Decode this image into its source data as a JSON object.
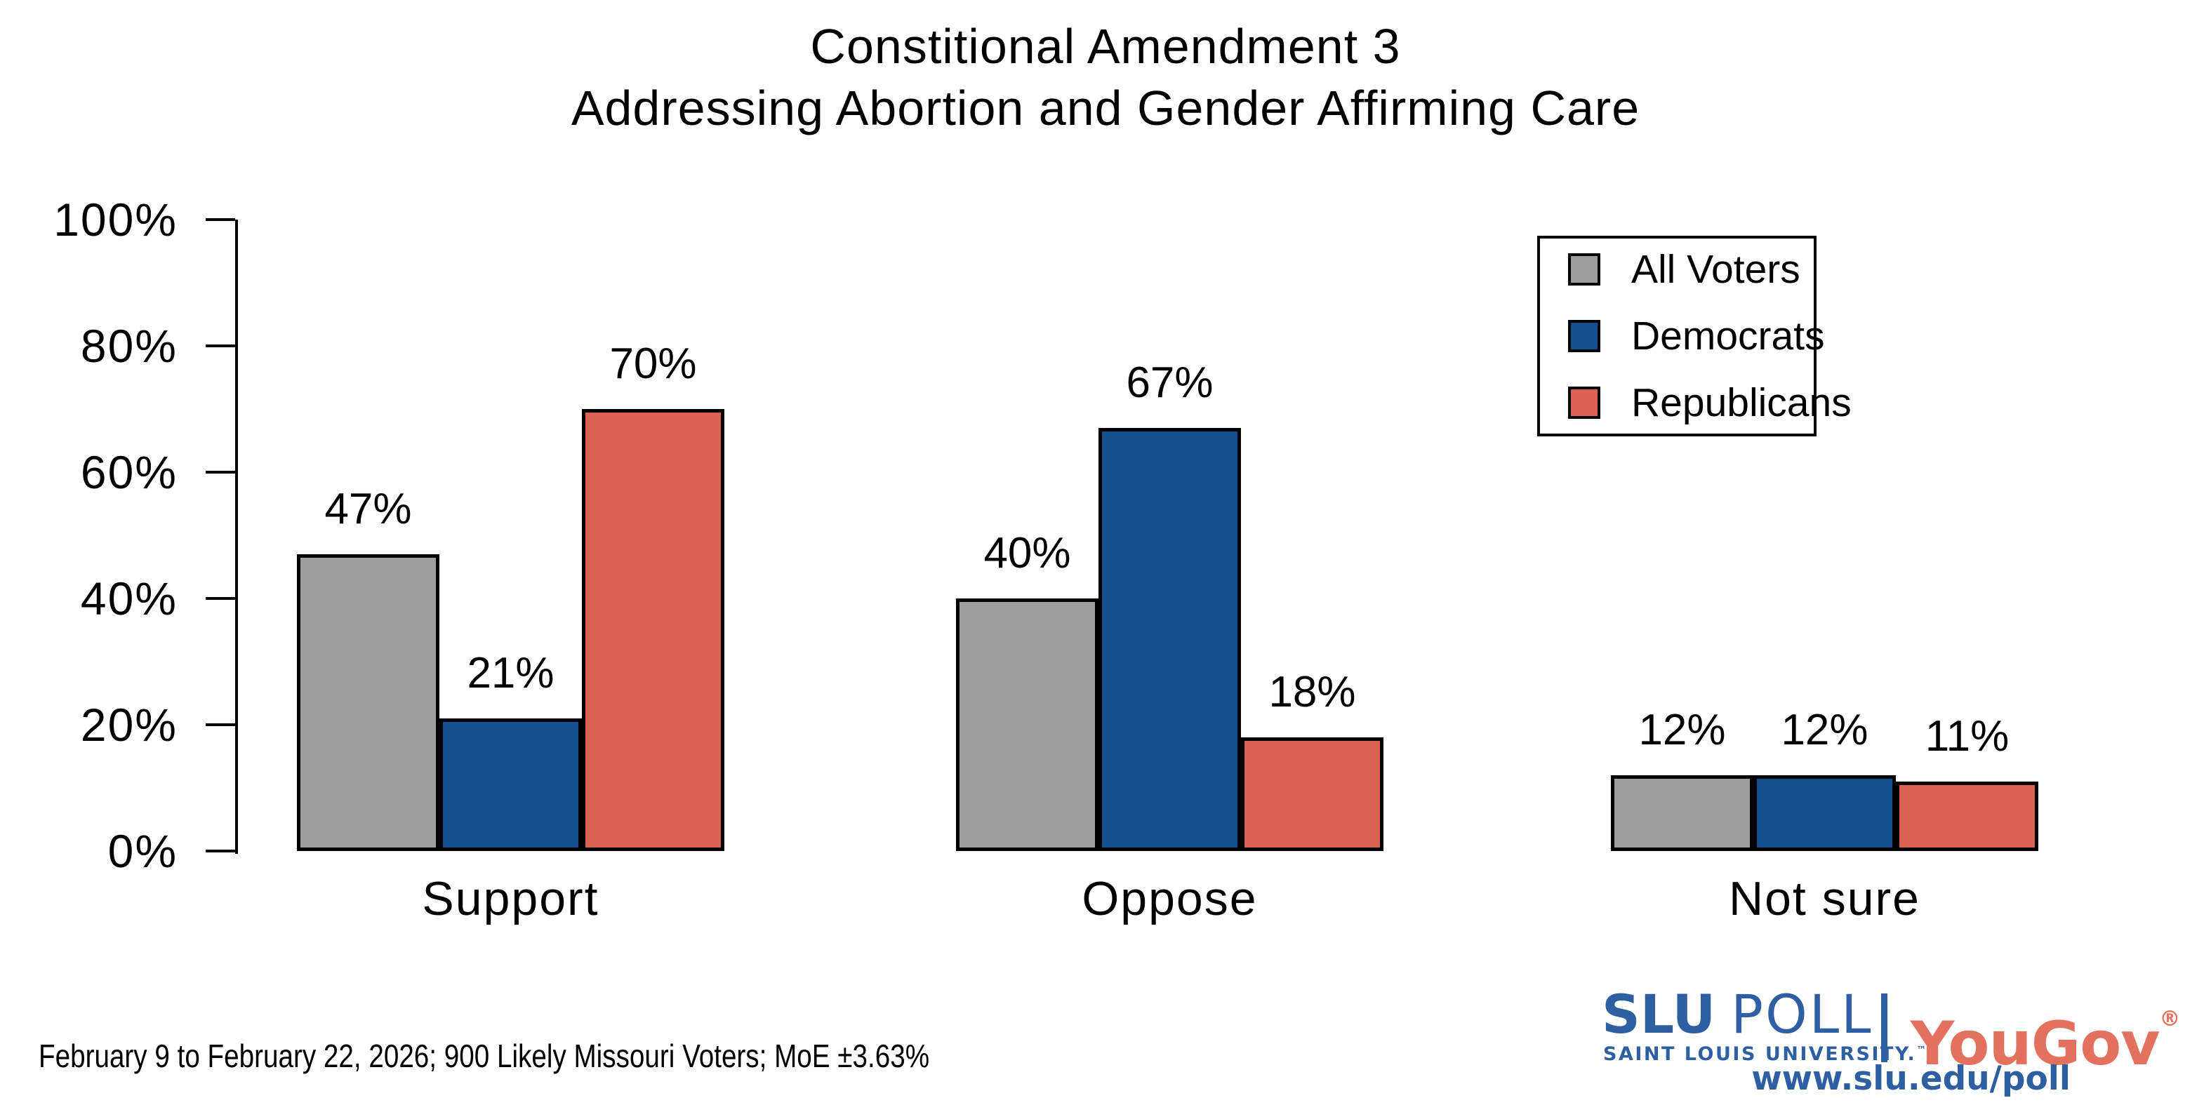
{
  "title": {
    "line1": "Constitional Amendment 3",
    "line2": "Addressing Abortion and Gender Affirming Care"
  },
  "chart_data": {
    "type": "bar",
    "categories": [
      "Support",
      "Oppose",
      "Not sure"
    ],
    "series": [
      {
        "name": "All Voters",
        "color": "#9e9e9e",
        "values": [
          47,
          40,
          12
        ]
      },
      {
        "name": "Democrats",
        "color": "#124f8c",
        "values": [
          21,
          67,
          12
        ]
      },
      {
        "name": "Republicans",
        "color": "#dc6354",
        "values": [
          70,
          18,
          11
        ]
      }
    ],
    "title": "Constitional Amendment 3 Addressing Abortion and Gender Affirming Care",
    "xlabel": "",
    "ylabel": "",
    "ylim": [
      0,
      100
    ],
    "y_ticks": [
      "0%",
      "20%",
      "40%",
      "60%",
      "80%",
      "100%"
    ],
    "grid": false,
    "legend_position": "top-right",
    "bar_labels": [
      "47%",
      "21%",
      "70%",
      "40%",
      "67%",
      "18%",
      "12%",
      "12%",
      "11%"
    ]
  },
  "footnote": "February 9 to February 22, 2026; 900 Likely Missouri Voters; MoE ±3.63%",
  "logo": {
    "slu": "SLU",
    "poll": "POLL",
    "university": "SAINT LOUIS UNIVERSITY.",
    "university_tm": "™",
    "partner": "YouGov",
    "registered": "®",
    "url": "www.slu.edu/poll",
    "slu_blue": "#2e5fa3",
    "yougov_red": "#e4705e"
  }
}
